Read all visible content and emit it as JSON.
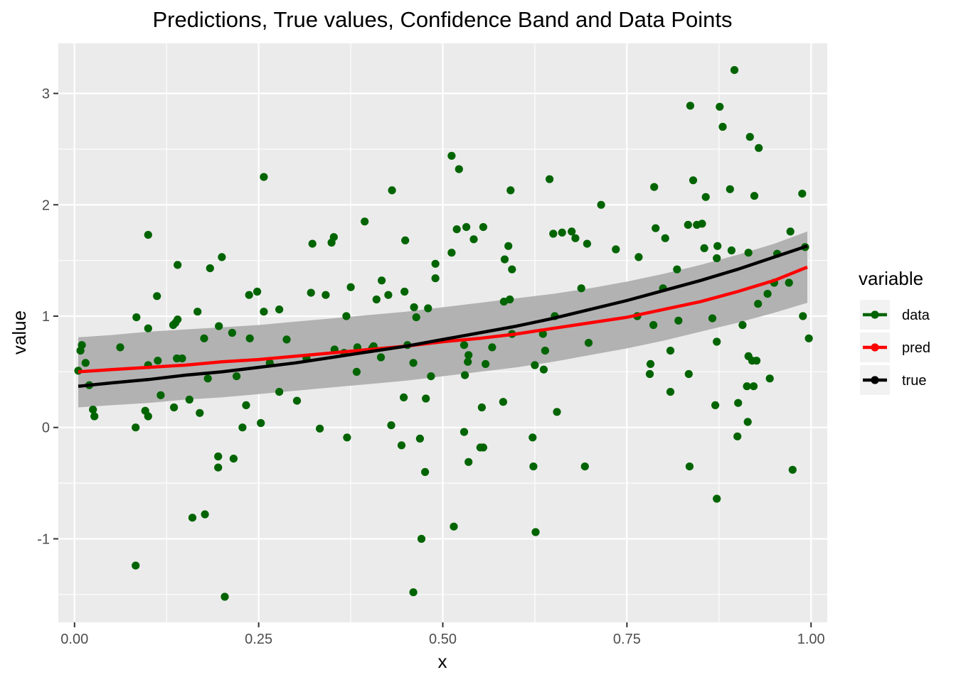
{
  "chart_data": {
    "type": "line",
    "title": "Predictions, True values, Confidence Band and Data Points",
    "xlabel": "x",
    "ylabel": "value",
    "xlim": [
      -0.022,
      1.022
    ],
    "ylim": [
      -1.75,
      3.45
    ],
    "x_ticks": [
      0.0,
      0.25,
      0.5,
      0.75,
      1.0
    ],
    "x_tick_labels": [
      "0.00",
      "0.25",
      "0.50",
      "0.75",
      "1.00"
    ],
    "y_ticks": [
      -1,
      0,
      1,
      2,
      3
    ],
    "y_tick_labels": [
      "-1",
      "0",
      "1",
      "2",
      "3"
    ],
    "grid": true,
    "legend": {
      "title": "variable",
      "position": "right",
      "entries": [
        {
          "label": "data",
          "color": "#006400"
        },
        {
          "label": "pred",
          "color": "#ff0000"
        },
        {
          "label": "true",
          "color": "#000000"
        }
      ]
    },
    "colors": {
      "panel": "#ebebeb",
      "grid": "#ffffff",
      "band": "#b2b2b2",
      "data": "#006400",
      "pred": "#ff0000",
      "true": "#000000"
    },
    "series": [
      {
        "name": "true",
        "x": [
          0.005,
          0.05,
          0.1,
          0.15,
          0.2,
          0.25,
          0.3,
          0.35,
          0.4,
          0.45,
          0.5,
          0.55,
          0.6,
          0.65,
          0.7,
          0.75,
          0.8,
          0.85,
          0.9,
          0.95,
          0.995
        ],
        "y": [
          0.37,
          0.4,
          0.43,
          0.47,
          0.5,
          0.54,
          0.58,
          0.63,
          0.68,
          0.73,
          0.79,
          0.85,
          0.91,
          0.98,
          1.06,
          1.14,
          1.23,
          1.32,
          1.42,
          1.53,
          1.63
        ]
      },
      {
        "name": "pred",
        "x": [
          0.005,
          0.05,
          0.1,
          0.15,
          0.2,
          0.25,
          0.3,
          0.35,
          0.4,
          0.45,
          0.5,
          0.55,
          0.6,
          0.65,
          0.7,
          0.75,
          0.8,
          0.85,
          0.9,
          0.95,
          0.995
        ],
        "y": [
          0.5,
          0.52,
          0.54,
          0.56,
          0.59,
          0.61,
          0.64,
          0.67,
          0.7,
          0.73,
          0.77,
          0.8,
          0.84,
          0.89,
          0.94,
          0.99,
          1.06,
          1.13,
          1.22,
          1.32,
          1.44
        ]
      },
      {
        "name": "band",
        "x": [
          0.005,
          0.05,
          0.1,
          0.15,
          0.2,
          0.25,
          0.3,
          0.35,
          0.4,
          0.45,
          0.5,
          0.55,
          0.6,
          0.65,
          0.7,
          0.75,
          0.8,
          0.85,
          0.9,
          0.95,
          0.995
        ],
        "lower": [
          0.18,
          0.2,
          0.22,
          0.25,
          0.27,
          0.3,
          0.33,
          0.36,
          0.39,
          0.42,
          0.46,
          0.5,
          0.54,
          0.59,
          0.65,
          0.71,
          0.78,
          0.86,
          0.94,
          1.03,
          1.12
        ],
        "upper": [
          0.81,
          0.83,
          0.86,
          0.88,
          0.9,
          0.92,
          0.95,
          0.98,
          1.01,
          1.04,
          1.08,
          1.12,
          1.16,
          1.2,
          1.25,
          1.31,
          1.38,
          1.46,
          1.55,
          1.65,
          1.76
        ]
      },
      {
        "name": "data",
        "points": [
          [
            0.005,
            0.51
          ],
          [
            0.008,
            0.69
          ],
          [
            0.01,
            0.74
          ],
          [
            0.015,
            0.58
          ],
          [
            0.02,
            0.38
          ],
          [
            0.025,
            0.16
          ],
          [
            0.027,
            0.1
          ],
          [
            0.062,
            0.72
          ],
          [
            0.083,
            -0.0
          ],
          [
            0.084,
            0.99
          ],
          [
            0.083,
            -1.24
          ],
          [
            0.096,
            0.15
          ],
          [
            0.1,
            1.73
          ],
          [
            0.1,
            0.89
          ],
          [
            0.1,
            0.56
          ],
          [
            0.1,
            0.1
          ],
          [
            0.112,
            1.18
          ],
          [
            0.113,
            0.6
          ],
          [
            0.117,
            0.29
          ],
          [
            0.134,
            0.92
          ],
          [
            0.135,
            0.18
          ],
          [
            0.137,
            0.94
          ],
          [
            0.14,
            0.97
          ],
          [
            0.139,
            0.62
          ],
          [
            0.14,
            1.46
          ],
          [
            0.146,
            0.62
          ],
          [
            0.156,
            0.25
          ],
          [
            0.16,
            -0.81
          ],
          [
            0.167,
            1.04
          ],
          [
            0.17,
            0.13
          ],
          [
            0.176,
            0.8
          ],
          [
            0.177,
            -0.78
          ],
          [
            0.181,
            0.44
          ],
          [
            0.184,
            1.43
          ],
          [
            0.195,
            -0.36
          ],
          [
            0.195,
            -0.26
          ],
          [
            0.196,
            0.91
          ],
          [
            0.2,
            1.53
          ],
          [
            0.204,
            -1.52
          ],
          [
            0.214,
            0.85
          ],
          [
            0.216,
            -0.28
          ],
          [
            0.22,
            0.46
          ],
          [
            0.228,
            -0.0
          ],
          [
            0.233,
            0.2
          ],
          [
            0.237,
            1.19
          ],
          [
            0.238,
            0.8
          ],
          [
            0.248,
            1.22
          ],
          [
            0.253,
            0.04
          ],
          [
            0.257,
            1.04
          ],
          [
            0.257,
            2.25
          ],
          [
            0.265,
            0.58
          ],
          [
            0.278,
            1.06
          ],
          [
            0.278,
            0.32
          ],
          [
            0.288,
            0.79
          ],
          [
            0.302,
            0.24
          ],
          [
            0.315,
            0.62
          ],
          [
            0.321,
            1.21
          ],
          [
            0.323,
            1.65
          ],
          [
            0.333,
            -0.01
          ],
          [
            0.341,
            1.19
          ],
          [
            0.349,
            1.66
          ],
          [
            0.352,
            1.71
          ],
          [
            0.353,
            0.7
          ],
          [
            0.366,
            0.67
          ],
          [
            0.369,
            1.0
          ],
          [
            0.37,
            -0.09
          ],
          [
            0.375,
            1.26
          ],
          [
            0.383,
            0.5
          ],
          [
            0.384,
            0.72
          ],
          [
            0.394,
            1.85
          ],
          [
            0.404,
            0.71
          ],
          [
            0.406,
            0.73
          ],
          [
            0.41,
            1.15
          ],
          [
            0.417,
            1.32
          ],
          [
            0.416,
            0.63
          ],
          [
            0.426,
            1.19
          ],
          [
            0.43,
            0.02
          ],
          [
            0.431,
            2.13
          ],
          [
            0.444,
            -0.16
          ],
          [
            0.447,
            0.27
          ],
          [
            0.448,
            1.22
          ],
          [
            0.449,
            1.68
          ],
          [
            0.452,
            0.74
          ],
          [
            0.46,
            -1.48
          ],
          [
            0.461,
            1.08
          ],
          [
            0.46,
            0.58
          ],
          [
            0.464,
            0.99
          ],
          [
            0.469,
            -0.1
          ],
          [
            0.471,
            -1.0
          ],
          [
            0.476,
            -0.4
          ],
          [
            0.477,
            0.26
          ],
          [
            0.48,
            1.07
          ],
          [
            0.484,
            0.46
          ],
          [
            0.49,
            1.47
          ],
          [
            0.49,
            1.34
          ],
          [
            0.512,
            2.44
          ],
          [
            0.512,
            1.57
          ],
          [
            0.515,
            -0.89
          ],
          [
            0.519,
            1.78
          ],
          [
            0.522,
            2.32
          ],
          [
            0.529,
            0.74
          ],
          [
            0.529,
            -0.04
          ],
          [
            0.53,
            0.47
          ],
          [
            0.532,
            1.8
          ],
          [
            0.534,
            0.59
          ],
          [
            0.535,
            -0.31
          ],
          [
            0.535,
            0.65
          ],
          [
            0.542,
            1.69
          ],
          [
            0.551,
            -0.18
          ],
          [
            0.553,
            0.18
          ],
          [
            0.555,
            -0.18
          ],
          [
            0.555,
            1.8
          ],
          [
            0.558,
            0.57
          ],
          [
            0.567,
            0.72
          ],
          [
            0.582,
            0.23
          ],
          [
            0.583,
            1.13
          ],
          [
            0.584,
            1.51
          ],
          [
            0.589,
            1.63
          ],
          [
            0.591,
            1.15
          ],
          [
            0.592,
            2.13
          ],
          [
            0.594,
            1.42
          ],
          [
            0.594,
            0.84
          ],
          [
            0.622,
            -0.09
          ],
          [
            0.623,
            -0.35
          ],
          [
            0.625,
            0.56
          ],
          [
            0.626,
            -0.94
          ],
          [
            0.636,
            0.84
          ],
          [
            0.637,
            0.52
          ],
          [
            0.639,
            0.69
          ],
          [
            0.645,
            2.23
          ],
          [
            0.65,
            1.74
          ],
          [
            0.652,
            1.0
          ],
          [
            0.655,
            0.14
          ],
          [
            0.662,
            1.75
          ],
          [
            0.675,
            1.76
          ],
          [
            0.68,
            1.7
          ],
          [
            0.688,
            1.25
          ],
          [
            0.693,
            -0.35
          ],
          [
            0.696,
            1.65
          ],
          [
            0.698,
            0.76
          ],
          [
            0.715,
            2.0
          ],
          [
            0.735,
            1.6
          ],
          [
            0.764,
            1.0
          ],
          [
            0.766,
            1.53
          ],
          [
            0.781,
            0.48
          ],
          [
            0.782,
            0.57
          ],
          [
            0.786,
            0.92
          ],
          [
            0.787,
            2.16
          ],
          [
            0.789,
            1.79
          ],
          [
            0.799,
            1.25
          ],
          [
            0.802,
            1.7
          ],
          [
            0.809,
            0.69
          ],
          [
            0.809,
            0.32
          ],
          [
            0.818,
            1.42
          ],
          [
            0.82,
            0.96
          ],
          [
            0.833,
            1.82
          ],
          [
            0.834,
            0.48
          ],
          [
            0.836,
            2.89
          ],
          [
            0.835,
            -0.35
          ],
          [
            0.84,
            2.22
          ],
          [
            0.845,
            1.82
          ],
          [
            0.852,
            1.83
          ],
          [
            0.855,
            1.61
          ],
          [
            0.857,
            2.07
          ],
          [
            0.866,
            0.98
          ],
          [
            0.87,
            0.2
          ],
          [
            0.872,
            -0.64
          ],
          [
            0.872,
            0.77
          ],
          [
            0.872,
            1.52
          ],
          [
            0.873,
            1.63
          ],
          [
            0.876,
            2.88
          ],
          [
            0.88,
            2.7
          ],
          [
            0.89,
            2.14
          ],
          [
            0.892,
            1.59
          ],
          [
            0.896,
            3.21
          ],
          [
            0.9,
            -0.08
          ],
          [
            0.901,
            0.22
          ],
          [
            0.907,
            0.92
          ],
          [
            0.913,
            0.37
          ],
          [
            0.914,
            0.05
          ],
          [
            0.915,
            1.57
          ],
          [
            0.915,
            0.64
          ],
          [
            0.917,
            2.61
          ],
          [
            0.92,
            0.6
          ],
          [
            0.922,
            0.37
          ],
          [
            0.923,
            2.08
          ],
          [
            0.926,
            0.6
          ],
          [
            0.928,
            1.11
          ],
          [
            0.929,
            2.51
          ],
          [
            0.941,
            1.2
          ],
          [
            0.944,
            0.44
          ],
          [
            0.95,
            1.3
          ],
          [
            0.954,
            1.56
          ],
          [
            0.97,
            1.3
          ],
          [
            0.972,
            1.76
          ],
          [
            0.975,
            -0.38
          ],
          [
            0.988,
            2.1
          ],
          [
            0.989,
            1.0
          ],
          [
            0.992,
            1.62
          ],
          [
            0.997,
            0.8
          ]
        ]
      }
    ]
  }
}
